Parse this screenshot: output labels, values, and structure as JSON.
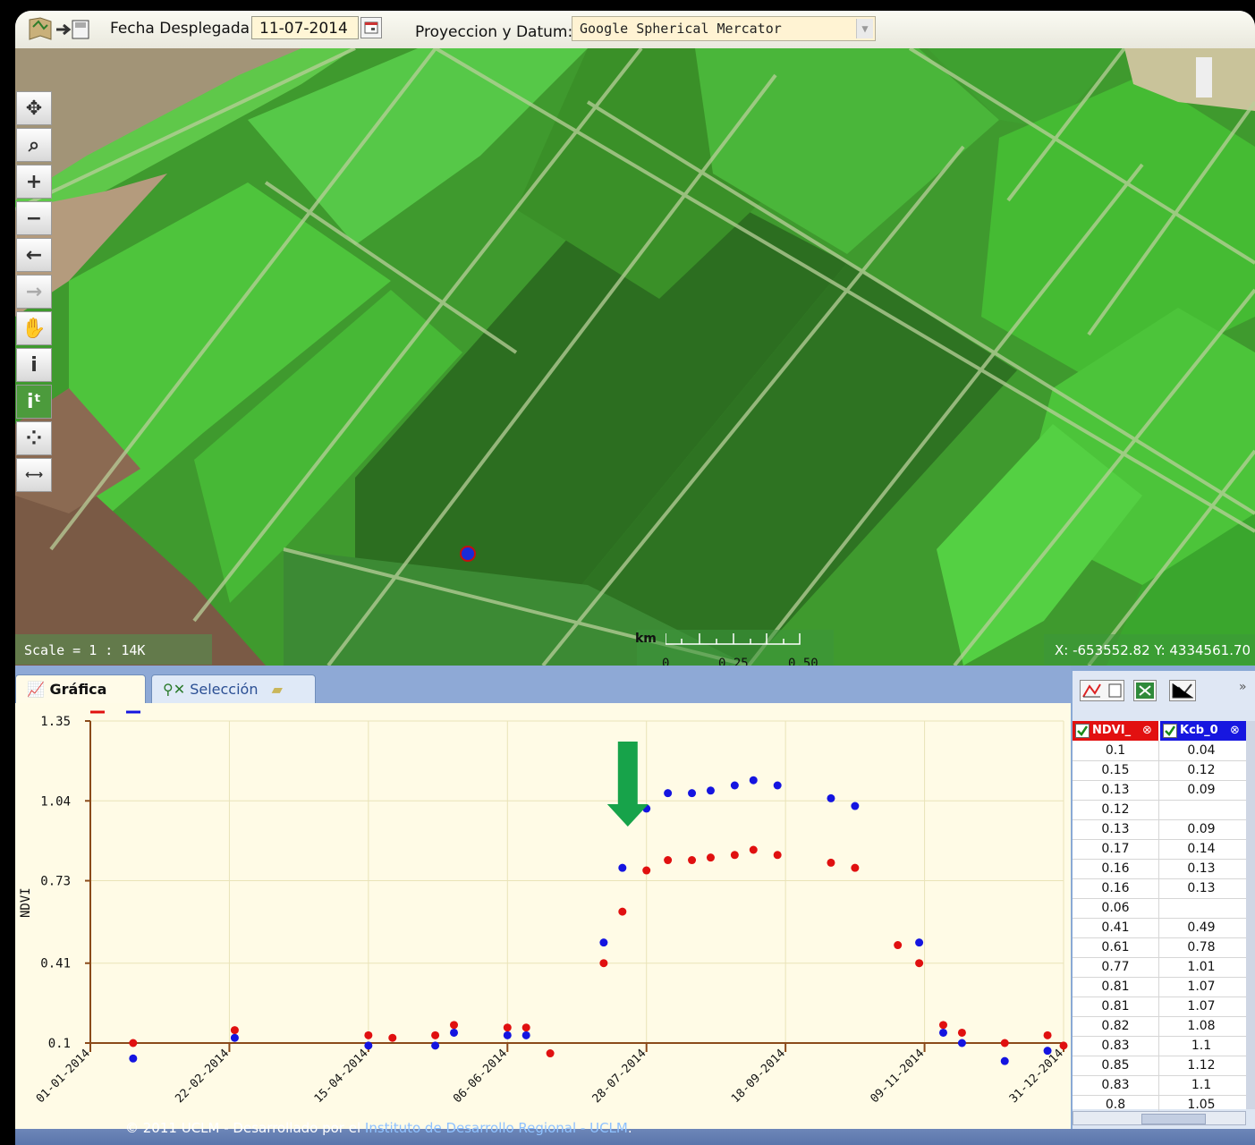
{
  "toolbar": {
    "date_label": "Fecha Desplegada:",
    "date_value": "11-07-2014",
    "projection_label": "Proyeccion y Datum:",
    "projection_value": "Google Spherical Mercator"
  },
  "map": {
    "tools": [
      "pan-icon",
      "zoom-box-icon",
      "zoom-in-icon",
      "zoom-out-icon",
      "back-icon",
      "forward-icon",
      "hand-icon",
      "info-icon",
      "info-time-icon",
      "select-points-icon",
      "measure-icon"
    ],
    "scale_text": "Scale = 1 : 14K",
    "scalebar_unit": "km",
    "scalebar_ticks": [
      "0",
      "0.25",
      "0.50"
    ],
    "coordinates": "X: -653552.82 Y: 4334561.70"
  },
  "tabs": [
    {
      "label": "Gráfica",
      "active": true
    },
    {
      "label": "Selección",
      "active": false
    }
  ],
  "chart_data": {
    "type": "scatter",
    "title": "",
    "xlabel": "",
    "ylabel": "NDVI",
    "y_ticks": [
      "0.1",
      "0.41",
      "0.73",
      "1.04",
      "1.35"
    ],
    "ylim": [
      0.1,
      1.35
    ],
    "x_ticks": [
      "01-01-2014",
      "22-02-2014",
      "15-04-2014",
      "06-06-2014",
      "28-07-2014",
      "18-09-2014",
      "09-11-2014",
      "31-12-2014"
    ],
    "xlim": [
      "2014-01-01",
      "2014-12-31"
    ],
    "grid": true,
    "legend": "top-left",
    "annotation": "green arrow pointing down at the first high blue point (~22-07-2014)",
    "series": [
      {
        "name": "NDVI_",
        "color": "#e01010",
        "points": [
          [
            "2014-01-17",
            0.1
          ],
          [
            "2014-02-24",
            0.15
          ],
          [
            "2014-04-15",
            0.13
          ],
          [
            "2014-04-24",
            0.12
          ],
          [
            "2014-05-10",
            0.13
          ],
          [
            "2014-05-17",
            0.17
          ],
          [
            "2014-06-06",
            0.16
          ],
          [
            "2014-06-13",
            0.16
          ],
          [
            "2014-06-22",
            0.06
          ],
          [
            "2014-07-12",
            0.41
          ],
          [
            "2014-07-19",
            0.61
          ],
          [
            "2014-07-28",
            0.77
          ],
          [
            "2014-08-05",
            0.81
          ],
          [
            "2014-08-14",
            0.81
          ],
          [
            "2014-08-21",
            0.82
          ],
          [
            "2014-08-30",
            0.83
          ],
          [
            "2014-09-06",
            0.85
          ],
          [
            "2014-09-15",
            0.83
          ],
          [
            "2014-10-05",
            0.8
          ],
          [
            "2014-10-14",
            0.78
          ],
          [
            "2014-10-30",
            0.48
          ],
          [
            "2014-11-07",
            0.41
          ],
          [
            "2014-11-16",
            0.17
          ],
          [
            "2014-11-23",
            0.14
          ],
          [
            "2014-12-09",
            0.1
          ],
          [
            "2014-12-25",
            0.13
          ],
          [
            "2014-12-31",
            0.09
          ]
        ]
      },
      {
        "name": "Kcb_0",
        "color": "#1414e0",
        "points": [
          [
            "2014-01-17",
            0.04
          ],
          [
            "2014-02-24",
            0.12
          ],
          [
            "2014-04-15",
            0.09
          ],
          [
            "2014-05-10",
            0.09
          ],
          [
            "2014-05-17",
            0.14
          ],
          [
            "2014-06-06",
            0.13
          ],
          [
            "2014-06-13",
            0.13
          ],
          [
            "2014-07-12",
            0.49
          ],
          [
            "2014-07-19",
            0.78
          ],
          [
            "2014-07-28",
            1.01
          ],
          [
            "2014-08-05",
            1.07
          ],
          [
            "2014-08-14",
            1.07
          ],
          [
            "2014-08-21",
            1.08
          ],
          [
            "2014-08-30",
            1.1
          ],
          [
            "2014-09-06",
            1.12
          ],
          [
            "2014-09-15",
            1.1
          ],
          [
            "2014-10-05",
            1.05
          ],
          [
            "2014-10-14",
            1.02
          ],
          [
            "2014-11-07",
            0.49
          ],
          [
            "2014-11-16",
            0.14
          ],
          [
            "2014-11-23",
            0.1
          ],
          [
            "2014-12-09",
            0.03
          ],
          [
            "2014-12-25",
            0.07
          ]
        ]
      }
    ]
  },
  "side_panel": {
    "icons": [
      "export-chart-icon",
      "excel-icon",
      "chart-tool-icon",
      "collapse-icon"
    ],
    "col1_header": "NDVI_",
    "col2_header": "Kcb_0",
    "rows": [
      [
        "0.1",
        "0.04"
      ],
      [
        "0.15",
        "0.12"
      ],
      [
        "0.13",
        "0.09"
      ],
      [
        "0.12",
        ""
      ],
      [
        "0.13",
        "0.09"
      ],
      [
        "0.17",
        "0.14"
      ],
      [
        "0.16",
        "0.13"
      ],
      [
        "0.16",
        "0.13"
      ],
      [
        "0.06",
        ""
      ],
      [
        "0.41",
        "0.49"
      ],
      [
        "0.61",
        "0.78"
      ],
      [
        "0.77",
        "1.01"
      ],
      [
        "0.81",
        "1.07"
      ],
      [
        "0.81",
        "1.07"
      ],
      [
        "0.82",
        "1.08"
      ],
      [
        "0.83",
        "1.1"
      ],
      [
        "0.85",
        "1.12"
      ],
      [
        "0.83",
        "1.1"
      ],
      [
        "0.8",
        "1.05"
      ]
    ]
  },
  "footer": {
    "text": "© 2011 UCLM - Desarrollado por el",
    "link": "Instituto de Desarrollo Regional - UCLM",
    "end": "."
  }
}
